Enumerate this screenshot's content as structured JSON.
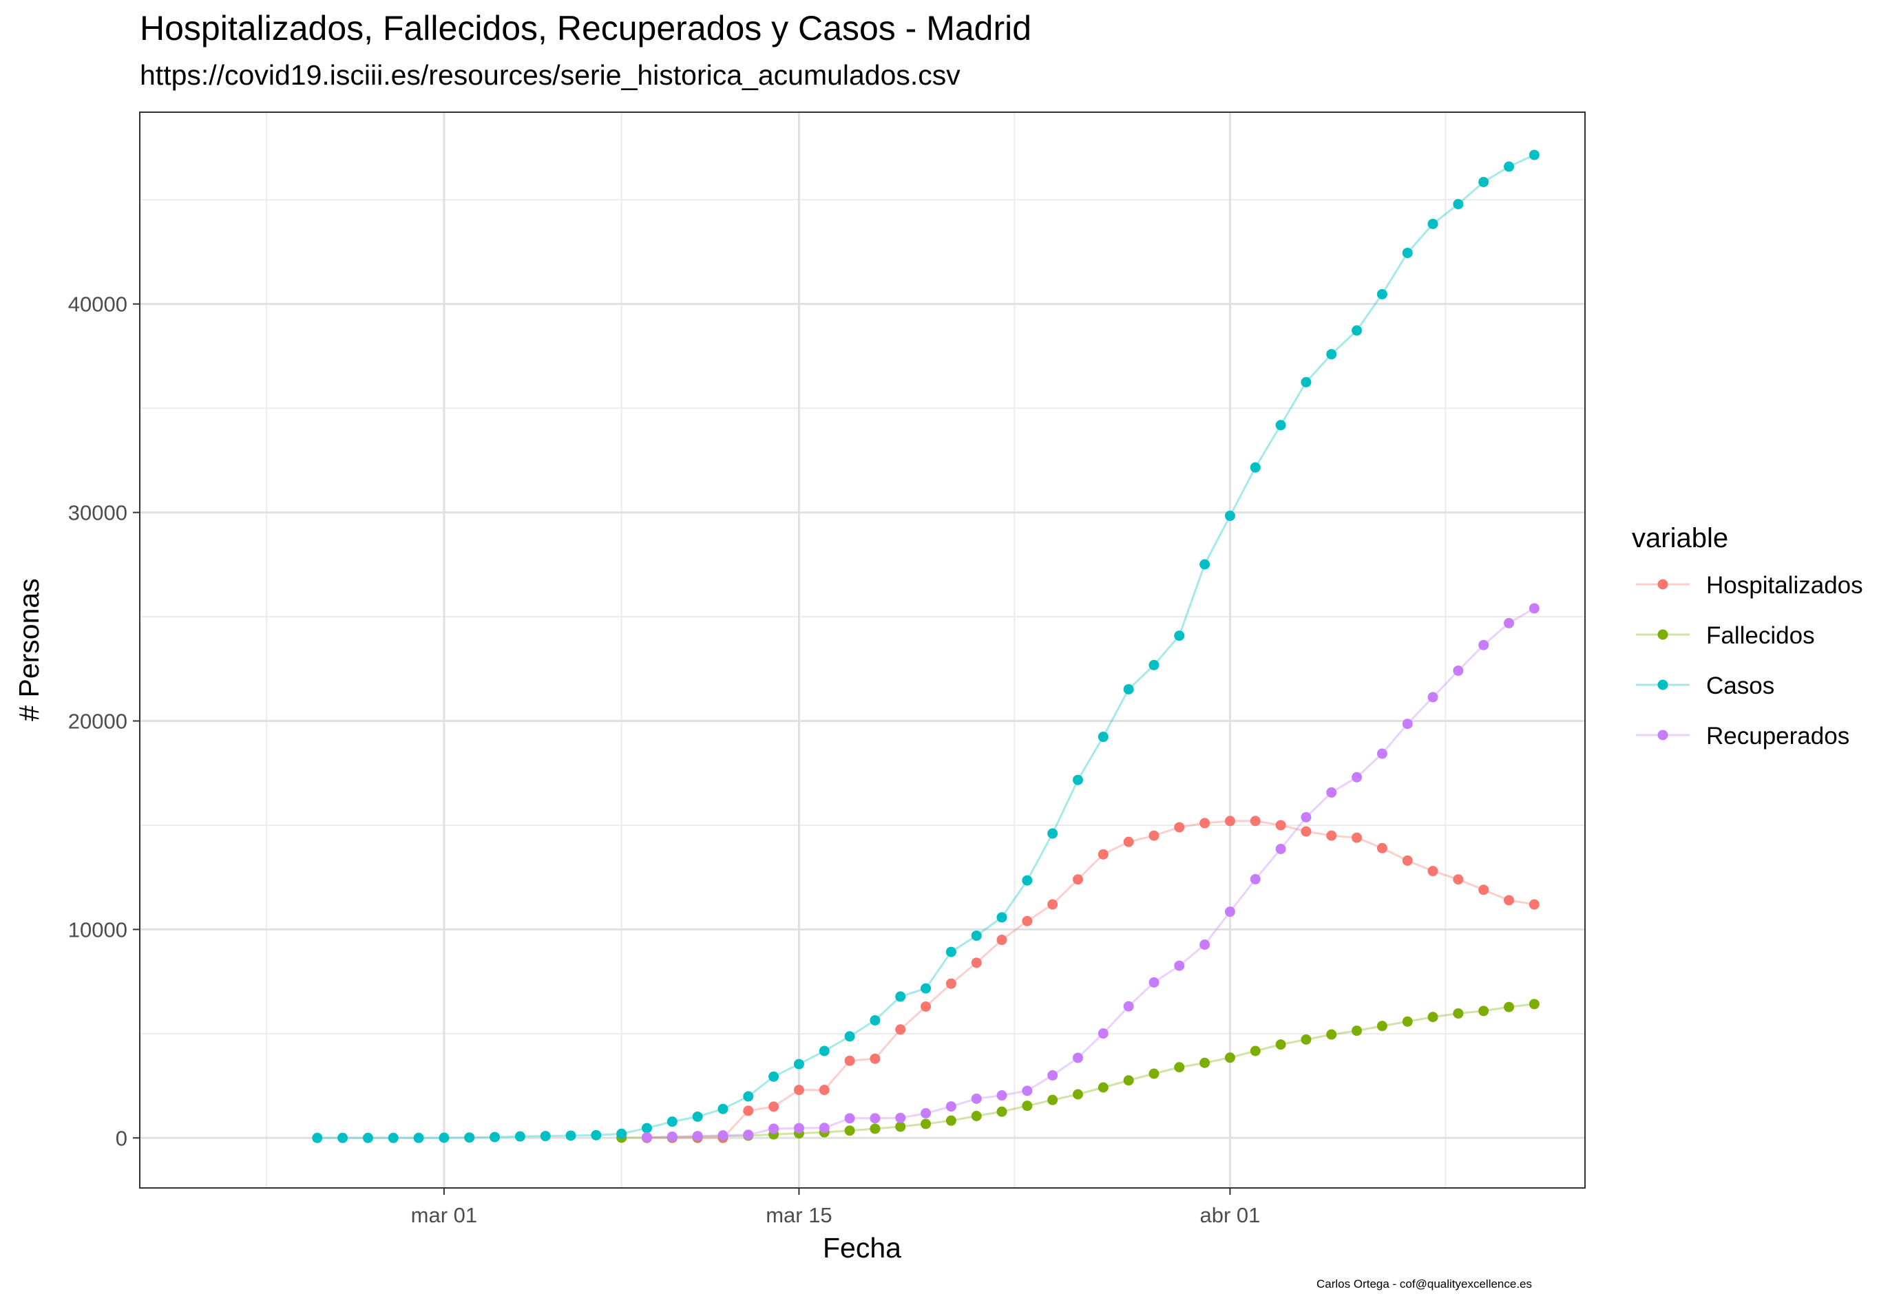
{
  "chart_data": {
    "type": "line",
    "title": "Hospitalizados, Fallecidos, Recuperados y Casos - Madrid",
    "subtitle": "https://covid19.isciii.es/resources/serie_historica_acumulados.csv",
    "xlabel": "Fecha",
    "ylabel": "# Personas",
    "caption": "Carlos Ortega - cof@qualityexcellence.es",
    "x_ticks": [
      {
        "date": "2020-03-01",
        "label": "mar 01"
      },
      {
        "date": "2020-03-15",
        "label": "mar 15"
      },
      {
        "date": "2020-04-01",
        "label": "abr 01"
      }
    ],
    "xlim": [
      "2020-02-18",
      "2020-04-15"
    ],
    "y_ticks": [
      0,
      10000,
      20000,
      30000,
      40000
    ],
    "y_tick_labels": [
      "0",
      "10000",
      "20000",
      "30000",
      "40000"
    ],
    "ylim": [
      -2400,
      49200
    ],
    "grid": true,
    "legend_title": "variable",
    "legend_position": "right",
    "series": [
      {
        "name": "Hospitalizados",
        "color": "#F8766D",
        "start_date": "2020-03-09",
        "values": [
          0,
          0,
          0,
          0,
          1300,
          1500,
          2300,
          2300,
          3700,
          3800,
          5200,
          6300,
          7400,
          8400,
          9500,
          10400,
          11200,
          12400,
          13600,
          14200,
          14500,
          14900,
          15100,
          15200,
          15200,
          15000,
          14700,
          14500,
          14400,
          13900,
          13300,
          12800,
          12400,
          11900,
          11400,
          11200
        ]
      },
      {
        "name": "Fallecidos",
        "color": "#7CAE00",
        "start_date": "2020-03-08",
        "values": [
          10,
          20,
          40,
          60,
          90,
          110,
          170,
          220,
          270,
          350,
          440,
          540,
          670,
          830,
          1050,
          1260,
          1540,
          1820,
          2090,
          2420,
          2760,
          3080,
          3390,
          3600,
          3850,
          4170,
          4480,
          4720,
          4960,
          5140,
          5370,
          5580,
          5800,
          5970,
          6090,
          6280,
          6420
        ]
      },
      {
        "name": "Casos",
        "color": "#00BFC4",
        "start_date": "2020-02-25",
        "values": [
          0,
          0,
          0,
          0,
          0,
          10,
          20,
          40,
          70,
          90,
          110,
          130,
          200,
          470,
          780,
          1020,
          1390,
          1990,
          2940,
          3540,
          4170,
          4870,
          5640,
          6780,
          7170,
          8920,
          9700,
          10580,
          12350,
          14600,
          17170,
          19240,
          21520,
          22680,
          24090,
          27510,
          29840,
          32160,
          34190,
          36250,
          37590,
          38730,
          40470,
          42450,
          43840,
          44790,
          45850,
          46590,
          47150
        ]
      },
      {
        "name": "Recuperados",
        "color": "#C77CFF",
        "start_date": "2020-03-09",
        "values": [
          30,
          60,
          90,
          120,
          150,
          440,
          470,
          480,
          940,
          940,
          960,
          1180,
          1510,
          1880,
          2040,
          2260,
          3000,
          3840,
          5010,
          6310,
          7460,
          8260,
          9270,
          10850,
          12410,
          13860,
          15380,
          16570,
          17300,
          18430,
          19860,
          21140,
          22410,
          23640,
          24690,
          25400
        ]
      }
    ]
  }
}
